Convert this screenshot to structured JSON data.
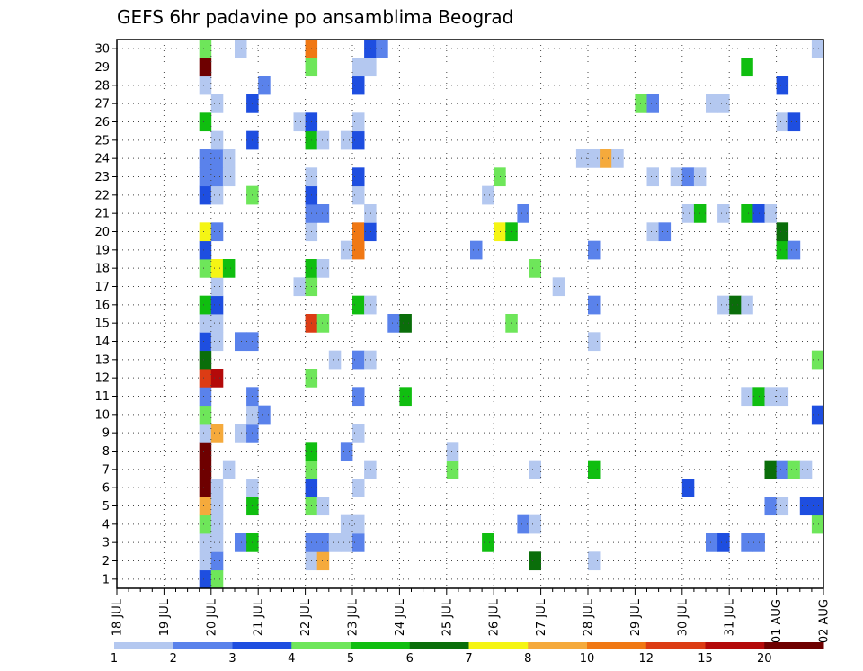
{
  "chart_data": {
    "type": "heatmap",
    "title": "GEFS 6hr padavine po ansamblima Beograd",
    "xlabel": "",
    "ylabel": "",
    "x_ticks": [
      "18 JUL",
      "19 JUL",
      "20 JUL",
      "21 JUL",
      "22 JUL",
      "23 JUL",
      "24 JUL",
      "25 JUL",
      "26 JUL",
      "27 JUL",
      "28 JUL",
      "29 JUL",
      "30 JUL",
      "31 JUL",
      "01 AUG",
      "02 AUG"
    ],
    "y_ticks": [
      "1",
      "2",
      "3",
      "4",
      "5",
      "6",
      "7",
      "8",
      "9",
      "10",
      "11",
      "12",
      "13",
      "14",
      "15",
      "16",
      "17",
      "18",
      "19",
      "20",
      "21",
      "22",
      "23",
      "24",
      "25",
      "26",
      "27",
      "28",
      "29",
      "30"
    ],
    "x_range": [
      0,
      60
    ],
    "y_range": [
      0,
      30
    ],
    "grid": true,
    "legend_placement": "bottom",
    "colorbar": {
      "labels": [
        "1",
        "2",
        "3",
        "4",
        "5",
        "6",
        "7",
        "8",
        "10",
        "12",
        "15",
        "20"
      ],
      "colors": [
        "#b4c8f0",
        "#5a82eb",
        "#1e4ee0",
        "#6ee65a",
        "#10be10",
        "#0a6e0a",
        "#f5f514",
        "#f5aa3c",
        "#f07814",
        "#dc3c14",
        "#b40a0a",
        "#6e0000"
      ]
    },
    "cells": [
      {
        "m": 0,
        "x": 7,
        "c": 2
      },
      {
        "m": 0,
        "x": 8,
        "c": 3
      },
      {
        "m": 1,
        "x": 7,
        "c": 0
      },
      {
        "m": 1,
        "x": 8,
        "c": 1
      },
      {
        "m": 1,
        "x": 16,
        "c": 0
      },
      {
        "m": 1,
        "x": 17,
        "c": 7
      },
      {
        "m": 1,
        "x": 35,
        "c": 5
      },
      {
        "m": 1,
        "x": 40,
        "c": 0
      },
      {
        "m": 2,
        "x": 7,
        "c": 0
      },
      {
        "m": 2,
        "x": 8,
        "c": 0
      },
      {
        "m": 2,
        "x": 10,
        "c": 1
      },
      {
        "m": 2,
        "x": 11,
        "c": 4
      },
      {
        "m": 2,
        "x": 16,
        "c": 1
      },
      {
        "m": 2,
        "x": 17,
        "c": 1
      },
      {
        "m": 2,
        "x": 18,
        "c": 0
      },
      {
        "m": 2,
        "x": 19,
        "c": 0
      },
      {
        "m": 2,
        "x": 20,
        "c": 1
      },
      {
        "m": 2,
        "x": 31,
        "c": 4
      },
      {
        "m": 2,
        "x": 50,
        "c": 1
      },
      {
        "m": 2,
        "x": 51,
        "c": 2
      },
      {
        "m": 2,
        "x": 53,
        "c": 1
      },
      {
        "m": 2,
        "x": 54,
        "c": 1
      },
      {
        "m": 3,
        "x": 7,
        "c": 3
      },
      {
        "m": 3,
        "x": 8,
        "c": 0
      },
      {
        "m": 3,
        "x": 19,
        "c": 0
      },
      {
        "m": 3,
        "x": 20,
        "c": 0
      },
      {
        "m": 3,
        "x": 34,
        "c": 1
      },
      {
        "m": 3,
        "x": 35,
        "c": 0
      },
      {
        "m": 3,
        "x": 59,
        "c": 3
      },
      {
        "m": 4,
        "x": 7,
        "c": 7
      },
      {
        "m": 4,
        "x": 8,
        "c": 0
      },
      {
        "m": 4,
        "x": 11,
        "c": 4
      },
      {
        "m": 4,
        "x": 16,
        "c": 3
      },
      {
        "m": 4,
        "x": 17,
        "c": 0
      },
      {
        "m": 4,
        "x": 55,
        "c": 1
      },
      {
        "m": 4,
        "x": 56,
        "c": 0
      },
      {
        "m": 4,
        "x": 58,
        "c": 2
      },
      {
        "m": 4,
        "x": 59,
        "c": 2
      },
      {
        "m": 5,
        "x": 7,
        "c": 11
      },
      {
        "m": 5,
        "x": 8,
        "c": 0
      },
      {
        "m": 5,
        "x": 11,
        "c": 0
      },
      {
        "m": 5,
        "x": 16,
        "c": 2
      },
      {
        "m": 5,
        "x": 20,
        "c": 0
      },
      {
        "m": 5,
        "x": 48,
        "c": 2
      },
      {
        "m": 6,
        "x": 7,
        "c": 11
      },
      {
        "m": 6,
        "x": 9,
        "c": 0
      },
      {
        "m": 6,
        "x": 16,
        "c": 3
      },
      {
        "m": 6,
        "x": 21,
        "c": 0
      },
      {
        "m": 6,
        "x": 28,
        "c": 3
      },
      {
        "m": 6,
        "x": 35,
        "c": 0
      },
      {
        "m": 6,
        "x": 40,
        "c": 4
      },
      {
        "m": 6,
        "x": 55,
        "c": 5
      },
      {
        "m": 6,
        "x": 56,
        "c": 1
      },
      {
        "m": 6,
        "x": 57,
        "c": 3
      },
      {
        "m": 6,
        "x": 58,
        "c": 0
      },
      {
        "m": 7,
        "x": 7,
        "c": 11
      },
      {
        "m": 7,
        "x": 16,
        "c": 4
      },
      {
        "m": 7,
        "x": 19,
        "c": 1
      },
      {
        "m": 7,
        "x": 28,
        "c": 0
      },
      {
        "m": 8,
        "x": 7,
        "c": 0
      },
      {
        "m": 8,
        "x": 8,
        "c": 7
      },
      {
        "m": 8,
        "x": 10,
        "c": 0
      },
      {
        "m": 8,
        "x": 11,
        "c": 1
      },
      {
        "m": 8,
        "x": 20,
        "c": 0
      },
      {
        "m": 9,
        "x": 7,
        "c": 3
      },
      {
        "m": 9,
        "x": 11,
        "c": 0
      },
      {
        "m": 9,
        "x": 12,
        "c": 1
      },
      {
        "m": 9,
        "x": 59,
        "c": 2
      },
      {
        "m": 10,
        "x": 7,
        "c": 1
      },
      {
        "m": 10,
        "x": 11,
        "c": 1
      },
      {
        "m": 10,
        "x": 20,
        "c": 1
      },
      {
        "m": 10,
        "x": 24,
        "c": 4
      },
      {
        "m": 10,
        "x": 53,
        "c": 0
      },
      {
        "m": 10,
        "x": 54,
        "c": 4
      },
      {
        "m": 10,
        "x": 55,
        "c": 0
      },
      {
        "m": 10,
        "x": 56,
        "c": 0
      },
      {
        "m": 11,
        "x": 7,
        "c": 9
      },
      {
        "m": 11,
        "x": 8,
        "c": 10
      },
      {
        "m": 11,
        "x": 16,
        "c": 3
      },
      {
        "m": 12,
        "x": 7,
        "c": 5
      },
      {
        "m": 12,
        "x": 18,
        "c": 0
      },
      {
        "m": 12,
        "x": 20,
        "c": 1
      },
      {
        "m": 12,
        "x": 21,
        "c": 0
      },
      {
        "m": 12,
        "x": 59,
        "c": 3
      },
      {
        "m": 13,
        "x": 7,
        "c": 2
      },
      {
        "m": 13,
        "x": 8,
        "c": 0
      },
      {
        "m": 13,
        "x": 10,
        "c": 1
      },
      {
        "m": 13,
        "x": 11,
        "c": 1
      },
      {
        "m": 13,
        "x": 40,
        "c": 0
      },
      {
        "m": 14,
        "x": 7,
        "c": 0
      },
      {
        "m": 14,
        "x": 8,
        "c": 0
      },
      {
        "m": 14,
        "x": 16,
        "c": 9
      },
      {
        "m": 14,
        "x": 17,
        "c": 3
      },
      {
        "m": 14,
        "x": 23,
        "c": 1
      },
      {
        "m": 14,
        "x": 24,
        "c": 5
      },
      {
        "m": 14,
        "x": 33,
        "c": 3
      },
      {
        "m": 15,
        "x": 7,
        "c": 4
      },
      {
        "m": 15,
        "x": 8,
        "c": 2
      },
      {
        "m": 15,
        "x": 20,
        "c": 4
      },
      {
        "m": 15,
        "x": 21,
        "c": 0
      },
      {
        "m": 15,
        "x": 40,
        "c": 1
      },
      {
        "m": 15,
        "x": 51,
        "c": 0
      },
      {
        "m": 15,
        "x": 52,
        "c": 5
      },
      {
        "m": 15,
        "x": 53,
        "c": 0
      },
      {
        "m": 16,
        "x": 8,
        "c": 0
      },
      {
        "m": 16,
        "x": 15,
        "c": 0
      },
      {
        "m": 16,
        "x": 16,
        "c": 3
      },
      {
        "m": 16,
        "x": 37,
        "c": 0
      },
      {
        "m": 17,
        "x": 7,
        "c": 3
      },
      {
        "m": 17,
        "x": 8,
        "c": 6
      },
      {
        "m": 17,
        "x": 9,
        "c": 4
      },
      {
        "m": 17,
        "x": 16,
        "c": 4
      },
      {
        "m": 17,
        "x": 17,
        "c": 0
      },
      {
        "m": 17,
        "x": 35,
        "c": 3
      },
      {
        "m": 18,
        "x": 7,
        "c": 2
      },
      {
        "m": 18,
        "x": 19,
        "c": 0
      },
      {
        "m": 18,
        "x": 20,
        "c": 8
      },
      {
        "m": 18,
        "x": 30,
        "c": 1
      },
      {
        "m": 18,
        "x": 40,
        "c": 1
      },
      {
        "m": 18,
        "x": 56,
        "c": 4
      },
      {
        "m": 18,
        "x": 57,
        "c": 1
      },
      {
        "m": 19,
        "x": 7,
        "c": 6
      },
      {
        "m": 19,
        "x": 8,
        "c": 1
      },
      {
        "m": 19,
        "x": 16,
        "c": 0
      },
      {
        "m": 19,
        "x": 20,
        "c": 8
      },
      {
        "m": 19,
        "x": 21,
        "c": 2
      },
      {
        "m": 19,
        "x": 32,
        "c": 6
      },
      {
        "m": 19,
        "x": 33,
        "c": 4
      },
      {
        "m": 19,
        "x": 45,
        "c": 0
      },
      {
        "m": 19,
        "x": 46,
        "c": 1
      },
      {
        "m": 19,
        "x": 56,
        "c": 5
      },
      {
        "m": 20,
        "x": 16,
        "c": 1
      },
      {
        "m": 20,
        "x": 17,
        "c": 1
      },
      {
        "m": 20,
        "x": 21,
        "c": 0
      },
      {
        "m": 20,
        "x": 34,
        "c": 1
      },
      {
        "m": 20,
        "x": 48,
        "c": 0
      },
      {
        "m": 20,
        "x": 49,
        "c": 4
      },
      {
        "m": 20,
        "x": 51,
        "c": 0
      },
      {
        "m": 20,
        "x": 53,
        "c": 4
      },
      {
        "m": 20,
        "x": 54,
        "c": 2
      },
      {
        "m": 20,
        "x": 55,
        "c": 0
      },
      {
        "m": 21,
        "x": 7,
        "c": 2
      },
      {
        "m": 21,
        "x": 8,
        "c": 0
      },
      {
        "m": 21,
        "x": 11,
        "c": 3
      },
      {
        "m": 21,
        "x": 16,
        "c": 2
      },
      {
        "m": 21,
        "x": 20,
        "c": 0
      },
      {
        "m": 21,
        "x": 31,
        "c": 0
      },
      {
        "m": 22,
        "x": 7,
        "c": 1
      },
      {
        "m": 22,
        "x": 8,
        "c": 1
      },
      {
        "m": 22,
        "x": 9,
        "c": 0
      },
      {
        "m": 22,
        "x": 16,
        "c": 0
      },
      {
        "m": 22,
        "x": 20,
        "c": 2
      },
      {
        "m": 22,
        "x": 32,
        "c": 3
      },
      {
        "m": 22,
        "x": 45,
        "c": 0
      },
      {
        "m": 22,
        "x": 47,
        "c": 0
      },
      {
        "m": 22,
        "x": 48,
        "c": 1
      },
      {
        "m": 22,
        "x": 49,
        "c": 0
      },
      {
        "m": 23,
        "x": 7,
        "c": 1
      },
      {
        "m": 23,
        "x": 8,
        "c": 1
      },
      {
        "m": 23,
        "x": 9,
        "c": 0
      },
      {
        "m": 23,
        "x": 39,
        "c": 0
      },
      {
        "m": 23,
        "x": 40,
        "c": 0
      },
      {
        "m": 23,
        "x": 41,
        "c": 7
      },
      {
        "m": 23,
        "x": 42,
        "c": 0
      },
      {
        "m": 24,
        "x": 8,
        "c": 0
      },
      {
        "m": 24,
        "x": 11,
        "c": 2
      },
      {
        "m": 24,
        "x": 16,
        "c": 4
      },
      {
        "m": 24,
        "x": 17,
        "c": 0
      },
      {
        "m": 24,
        "x": 19,
        "c": 0
      },
      {
        "m": 24,
        "x": 20,
        "c": 2
      },
      {
        "m": 25,
        "x": 7,
        "c": 4
      },
      {
        "m": 25,
        "x": 15,
        "c": 0
      },
      {
        "m": 25,
        "x": 16,
        "c": 2
      },
      {
        "m": 25,
        "x": 20,
        "c": 0
      },
      {
        "m": 25,
        "x": 56,
        "c": 0
      },
      {
        "m": 25,
        "x": 57,
        "c": 2
      },
      {
        "m": 26,
        "x": 8,
        "c": 0
      },
      {
        "m": 26,
        "x": 11,
        "c": 2
      },
      {
        "m": 26,
        "x": 44,
        "c": 3
      },
      {
        "m": 26,
        "x": 45,
        "c": 1
      },
      {
        "m": 26,
        "x": 50,
        "c": 0
      },
      {
        "m": 26,
        "x": 51,
        "c": 0
      },
      {
        "m": 27,
        "x": 7,
        "c": 0
      },
      {
        "m": 27,
        "x": 12,
        "c": 1
      },
      {
        "m": 27,
        "x": 20,
        "c": 2
      },
      {
        "m": 27,
        "x": 56,
        "c": 2
      },
      {
        "m": 28,
        "x": 7,
        "c": 11
      },
      {
        "m": 28,
        "x": 16,
        "c": 3
      },
      {
        "m": 28,
        "x": 20,
        "c": 0
      },
      {
        "m": 28,
        "x": 21,
        "c": 0
      },
      {
        "m": 28,
        "x": 53,
        "c": 4
      },
      {
        "m": 29,
        "x": 7,
        "c": 3
      },
      {
        "m": 29,
        "x": 10,
        "c": 0
      },
      {
        "m": 29,
        "x": 16,
        "c": 8
      },
      {
        "m": 29,
        "x": 21,
        "c": 2
      },
      {
        "m": 29,
        "x": 22,
        "c": 1
      },
      {
        "m": 29,
        "x": 59,
        "c": 0
      }
    ]
  }
}
